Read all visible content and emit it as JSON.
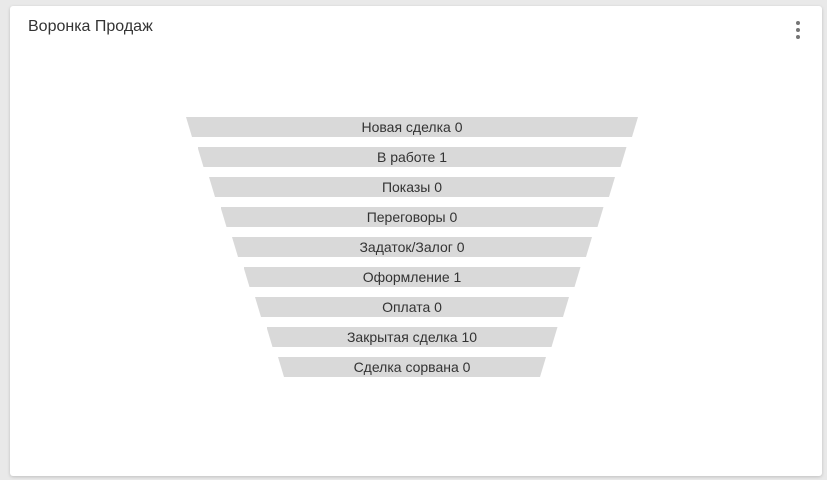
{
  "widget": {
    "title": "Воронка Продаж",
    "menu_icon": "more-vertical-icon"
  },
  "colors": {
    "stage_fill": "#d9d9d9",
    "text": "#333333",
    "card_background": "#ffffff"
  },
  "chart_data": {
    "type": "funnel",
    "title": "Воронка Продаж",
    "stages": [
      {
        "name": "Новая сделка",
        "value": 0,
        "label": "Новая сделка 0"
      },
      {
        "name": "В работе",
        "value": 1,
        "label": "В работе 1"
      },
      {
        "name": "Показы",
        "value": 0,
        "label": "Показы 0"
      },
      {
        "name": "Переговоры",
        "value": 0,
        "label": "Переговоры 0"
      },
      {
        "name": "Задаток/Залог",
        "value": 0,
        "label": "Задаток/Залог 0"
      },
      {
        "name": "Оформление",
        "value": 1,
        "label": "Оформление 1"
      },
      {
        "name": "Оплата",
        "value": 0,
        "label": "Оплата 0"
      },
      {
        "name": "Закрытая сделка",
        "value": 10,
        "label": "Закрытая сделка 10"
      },
      {
        "name": "Сделка сорвана",
        "value": 0,
        "label": "Сделка сорвана 0"
      }
    ]
  }
}
